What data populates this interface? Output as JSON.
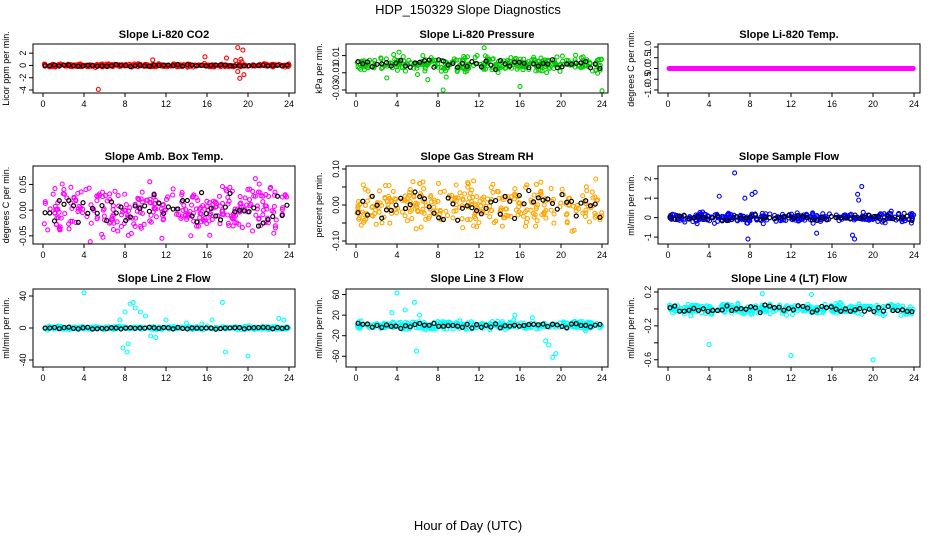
{
  "figure": {
    "title": "HDP_150329  Slope Diagnostics",
    "xlabel": "Hour of Day (UTC)"
  },
  "chart_data": [
    {
      "type": "scatter",
      "title": "Slope Li-820 CO2",
      "ylabel": "Licor ppm per min.",
      "xlim": [
        0,
        24
      ],
      "xticks": [
        0,
        4,
        8,
        12,
        16,
        20,
        24
      ],
      "ylim": [
        -4,
        3
      ],
      "yticks": [
        -4,
        -2,
        0,
        2
      ],
      "ytick_labels": [
        "-4",
        "-2",
        "0",
        "2"
      ],
      "color": "#ff0000",
      "spread": 0.25,
      "outliers": [
        [
          5.4,
          -3.9
        ],
        [
          10.7,
          0.9
        ],
        [
          15.8,
          1.4
        ],
        [
          17.9,
          1.2
        ],
        [
          19.0,
          2.9
        ],
        [
          19.5,
          2.5
        ],
        [
          19.2,
          -2.1
        ],
        [
          19.6,
          -1.5
        ],
        [
          19.0,
          -1.0
        ],
        [
          18.8,
          0.8
        ],
        [
          19.3,
          1.0
        ],
        [
          19.4,
          0.6
        ]
      ]
    },
    {
      "type": "scatter",
      "title": "Slope Li-820 Pressure",
      "ylabel": "kPa per min.",
      "xlim": [
        0,
        24
      ],
      "xticks": [
        0,
        4,
        8,
        12,
        16,
        20,
        24
      ],
      "ylim": [
        -0.03,
        0.02
      ],
      "yticks": [
        -0.03,
        -0.01,
        0.01
      ],
      "ytick_labels": [
        "-0.03",
        "-0.01",
        "0.01"
      ],
      "color": "#00cc00",
      "spread": 0.008,
      "outliers": [
        [
          8.5,
          -0.03
        ],
        [
          16.0,
          -0.026
        ],
        [
          24.0,
          -0.031
        ],
        [
          3.0,
          -0.016
        ],
        [
          7.0,
          -0.018
        ],
        [
          12.5,
          0.019
        ],
        [
          4.2,
          0.014
        ],
        [
          8.8,
          -0.015
        ],
        [
          6.0,
          -0.012
        ]
      ]
    },
    {
      "type": "scatter",
      "title": "Slope Li-820 Temp.",
      "ylabel": "degrees C per min.",
      "xlim": [
        0,
        24
      ],
      "xticks": [
        0,
        4,
        8,
        12,
        16,
        20,
        24
      ],
      "ylim": [
        -1,
        1
      ],
      "yticks": [
        -1,
        -0.5,
        0,
        0.5,
        1
      ],
      "ytick_labels": [
        "-1.0",
        "-0.5",
        "0.0",
        "0.5",
        "1.0"
      ],
      "color": "#ff00ff",
      "spread": 0,
      "outliers": []
    },
    {
      "type": "scatter",
      "title": "Slope Amb. Box Temp.",
      "ylabel": "degrees C per min.",
      "xlim": [
        0,
        24
      ],
      "xticks": [
        0,
        4,
        8,
        12,
        16,
        20,
        24
      ],
      "ylim": [
        -0.06,
        0.08
      ],
      "yticks": [
        -0.05,
        0,
        0.05
      ],
      "ytick_labels": [
        "-0.05",
        "0.00",
        "0.05"
      ],
      "color": "#ff00ff",
      "spread": 0.045,
      "outliers": []
    },
    {
      "type": "scatter",
      "title": "Slope Gas Stream RH",
      "ylabel": "percent per min.",
      "xlim": [
        0,
        24
      ],
      "xticks": [
        0,
        4,
        8,
        12,
        16,
        20,
        24
      ],
      "ylim": [
        -0.1,
        0.1
      ],
      "yticks": [
        -0.1,
        -0.05,
        0,
        0.05,
        0.1
      ],
      "ytick_labels": [
        "-0.10",
        "",
        "0.00",
        "",
        "0.10"
      ],
      "color": "#ffa500",
      "spread": 0.06,
      "outliers": []
    },
    {
      "type": "scatter",
      "title": "Slope Sample Flow",
      "ylabel": "ml/min per min.",
      "xlim": [
        0,
        24
      ],
      "xticks": [
        0,
        4,
        8,
        12,
        16,
        20,
        24
      ],
      "ylim": [
        -1.2,
        2.5
      ],
      "yticks": [
        -1,
        0,
        1,
        2
      ],
      "ytick_labels": [
        "-1",
        "0",
        "1",
        "2"
      ],
      "color": "#0000ff",
      "spread": 0.25,
      "outliers": [
        [
          6.5,
          2.3
        ],
        [
          18.9,
          1.6
        ],
        [
          18.5,
          1.2
        ],
        [
          18.6,
          0.9
        ],
        [
          18.0,
          -0.9
        ],
        [
          7.8,
          -1.1
        ],
        [
          8.2,
          1.2
        ],
        [
          8.5,
          1.3
        ],
        [
          7.5,
          1.0
        ],
        [
          18.2,
          -1.1
        ],
        [
          14.5,
          -0.8
        ],
        [
          5.0,
          1.1
        ]
      ]
    },
    {
      "type": "scatter",
      "title": "Slope Line 2 Flow",
      "ylabel": "ml/min per min.",
      "xlim": [
        0,
        24
      ],
      "xticks": [
        0,
        4,
        8,
        12,
        16,
        20,
        24
      ],
      "ylim": [
        -45,
        45
      ],
      "yticks": [
        -40,
        0,
        40
      ],
      "ytick_labels": [
        "-40",
        "0",
        "40"
      ],
      "color": "#00ffff",
      "spread": 2,
      "outliers": [
        [
          4.0,
          44
        ],
        [
          8.5,
          30
        ],
        [
          8.8,
          32
        ],
        [
          9.0,
          25
        ],
        [
          7.8,
          -25
        ],
        [
          8.2,
          -30
        ],
        [
          9.5,
          20
        ],
        [
          8.0,
          20
        ],
        [
          17.5,
          32
        ],
        [
          16.5,
          10
        ],
        [
          17.8,
          -30
        ],
        [
          20.0,
          -35
        ],
        [
          23.5,
          10
        ],
        [
          23.0,
          12
        ],
        [
          12.0,
          10
        ],
        [
          10.5,
          -10
        ],
        [
          11.0,
          -12
        ],
        [
          15.5,
          5
        ],
        [
          14.0,
          6
        ],
        [
          10.0,
          15
        ],
        [
          7.5,
          10
        ],
        [
          8.3,
          -20
        ]
      ]
    },
    {
      "type": "scatter",
      "title": "Slope Line 3 Flow",
      "ylabel": "ml/min per min.",
      "xlim": [
        0,
        24
      ],
      "xticks": [
        0,
        4,
        8,
        12,
        16,
        20,
        24
      ],
      "ylim": [
        -75,
        65
      ],
      "yticks": [
        -60,
        -20,
        20,
        60
      ],
      "ytick_labels": [
        "-60",
        "-20",
        "20",
        "60"
      ],
      "color": "#00ffff",
      "spread": 8,
      "outliers": [
        [
          4.0,
          63
        ],
        [
          5.7,
          45
        ],
        [
          5.9,
          -50
        ],
        [
          18.8,
          -38
        ],
        [
          19.2,
          -62
        ],
        [
          19.5,
          -55
        ],
        [
          18.5,
          -30
        ],
        [
          4.8,
          30
        ],
        [
          3.5,
          25
        ],
        [
          15.5,
          20
        ],
        [
          17.2,
          15
        ],
        [
          6.2,
          20
        ]
      ]
    },
    {
      "type": "scatter",
      "title": "Slope Line 4 (LT) Flow",
      "ylabel": "ml/min per min.",
      "xlim": [
        0,
        24
      ],
      "xticks": [
        0,
        4,
        8,
        12,
        16,
        20,
        24
      ],
      "ylim": [
        -0.65,
        0.2
      ],
      "yticks": [
        -0.6,
        -0.4,
        -0.2,
        0,
        0.2
      ],
      "ytick_labels": [
        "-0.6",
        "",
        "-0.2",
        "",
        "0.2"
      ],
      "color": "#00ffff",
      "spread": 0.06,
      "outliers": [
        [
          4.0,
          -0.42
        ],
        [
          12.0,
          -0.55
        ],
        [
          20.0,
          -0.6
        ],
        [
          9.2,
          0.18
        ],
        [
          14.0,
          0.17
        ]
      ]
    }
  ]
}
